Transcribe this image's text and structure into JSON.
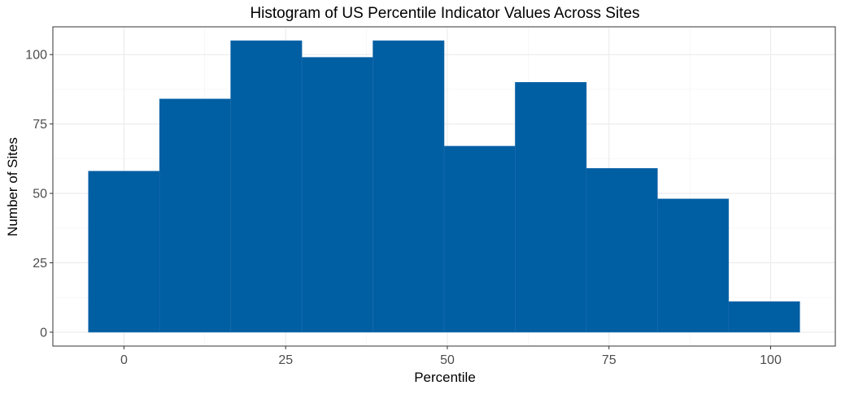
{
  "chart_data": {
    "type": "bar",
    "title": "Histogram of US Percentile Indicator Values Across Sites",
    "xlabel": "Percentile",
    "ylabel": "Number of Sites",
    "bins": [
      {
        "x_start": -5.5,
        "x_end": 5.5,
        "count": 58
      },
      {
        "x_start": 5.5,
        "x_end": 16.5,
        "count": 84
      },
      {
        "x_start": 16.5,
        "x_end": 27.5,
        "count": 105
      },
      {
        "x_start": 27.5,
        "x_end": 38.5,
        "count": 99
      },
      {
        "x_start": 38.5,
        "x_end": 49.5,
        "count": 105
      },
      {
        "x_start": 49.5,
        "x_end": 60.5,
        "count": 67
      },
      {
        "x_start": 60.5,
        "x_end": 71.5,
        "count": 90
      },
      {
        "x_start": 71.5,
        "x_end": 82.5,
        "count": 59
      },
      {
        "x_start": 82.5,
        "x_end": 93.5,
        "count": 48
      },
      {
        "x_start": 93.5,
        "x_end": 104.5,
        "count": 11
      }
    ],
    "xlim": [
      -11,
      110
    ],
    "ylim": [
      -5,
      110
    ],
    "x_ticks": [
      0,
      25,
      50,
      75,
      100
    ],
    "y_ticks": [
      0,
      25,
      50,
      75,
      100
    ],
    "bar_color": "#005ea2",
    "grid": true,
    "legend": "none"
  }
}
